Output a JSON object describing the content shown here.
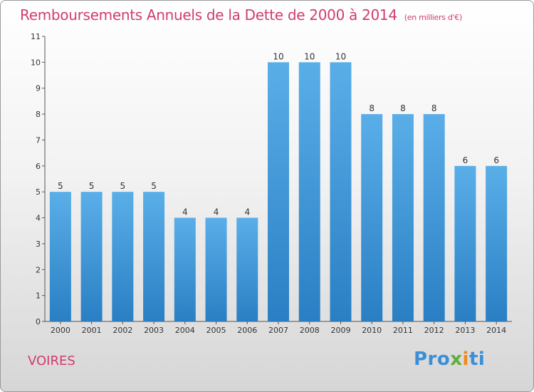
{
  "title": "Remboursements Annuels de la Dette de 2000 à 2014",
  "units": "(en milliers d'€)",
  "city": "VOIRES",
  "logo": "Proxiti",
  "colors": {
    "title": "#cf3d6c",
    "bar_light": "#5aaee8",
    "bar_dark": "#2a7fc4"
  },
  "chart_data": {
    "type": "bar",
    "categories": [
      "2000",
      "2001",
      "2002",
      "2003",
      "2004",
      "2005",
      "2006",
      "2007",
      "2008",
      "2009",
      "2010",
      "2011",
      "2012",
      "2013",
      "2014"
    ],
    "values": [
      5,
      5,
      5,
      5,
      4,
      4,
      4,
      10,
      10,
      10,
      8,
      8,
      8,
      6,
      6
    ],
    "yticks": [
      0,
      1,
      2,
      3,
      4,
      5,
      6,
      7,
      8,
      9,
      10,
      11
    ],
    "ylim": [
      0,
      11
    ],
    "grid": false,
    "data_labels": true
  }
}
